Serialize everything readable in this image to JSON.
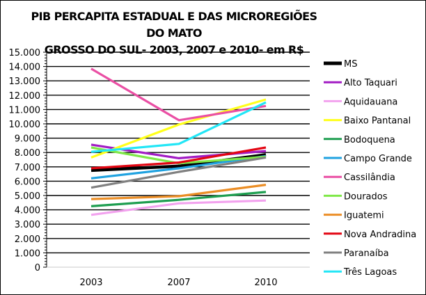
{
  "chart_data": {
    "type": "line",
    "title": "PIB PERCAPITA ESTADUAL E DAS MICROREGIÕES DO MATO GROSSO DO SUL- 2003, 2007 e 2010- em R$",
    "title_lines": [
      "PIB PERCAPITA ESTADUAL E DAS MICROREGIÕES DO MATO",
      "GROSSO DO SUL- 2003, 2007 e 2010- em R$"
    ],
    "xlabel": "",
    "ylabel": "",
    "categories": [
      "2003",
      "2007",
      "2010"
    ],
    "ylim": [
      0,
      15000
    ],
    "yticks": [
      0,
      1000,
      2000,
      3000,
      4000,
      5000,
      6000,
      7000,
      8000,
      9000,
      10000,
      11000,
      12000,
      13000,
      14000,
      15000
    ],
    "ytick_labels": [
      "0",
      "1.000",
      "2.000",
      "3.000",
      "4.000",
      "5.000",
      "6.000",
      "7.000",
      "8.000",
      "9.000",
      "10.000",
      "11.000",
      "12.000",
      "13.000",
      "14.000",
      "15.000"
    ],
    "grid": true,
    "legend_position": "right",
    "series": [
      {
        "name": "MS",
        "color": "#000000",
        "values": [
          6750,
          7050,
          7850
        ]
      },
      {
        "name": "Alto Taquari",
        "color": "#A21CC4",
        "values": [
          8550,
          7600,
          8100
        ]
      },
      {
        "name": "Aquidauana",
        "color": "#F2A2EE",
        "values": [
          3650,
          4450,
          4650
        ]
      },
      {
        "name": "Baixo Pantanal",
        "color": "#FFFF1A",
        "values": [
          7650,
          9950,
          11700
        ]
      },
      {
        "name": "Bodoquena",
        "color": "#1E9E50",
        "values": [
          4250,
          4700,
          5250
        ]
      },
      {
        "name": "Campo Grande",
        "color": "#1FA2E0",
        "values": [
          6200,
          6900,
          7750
        ]
      },
      {
        "name": "Cassilândia",
        "color": "#EA4FA4",
        "values": [
          13850,
          10250,
          11250
        ]
      },
      {
        "name": "Dourados",
        "color": "#7FE848",
        "values": [
          8350,
          7250,
          7700
        ]
      },
      {
        "name": "Iguatemi",
        "color": "#EB8E26",
        "values": [
          4750,
          4950,
          5750
        ]
      },
      {
        "name": "Nova Andradina",
        "color": "#E30613",
        "values": [
          6900,
          7300,
          8350
        ]
      },
      {
        "name": "Paranaíba",
        "color": "#808080",
        "values": [
          5550,
          6650,
          7650
        ]
      },
      {
        "name": "Três Lagoas",
        "color": "#22E6F6",
        "values": [
          8050,
          8600,
          11500
        ]
      }
    ]
  }
}
